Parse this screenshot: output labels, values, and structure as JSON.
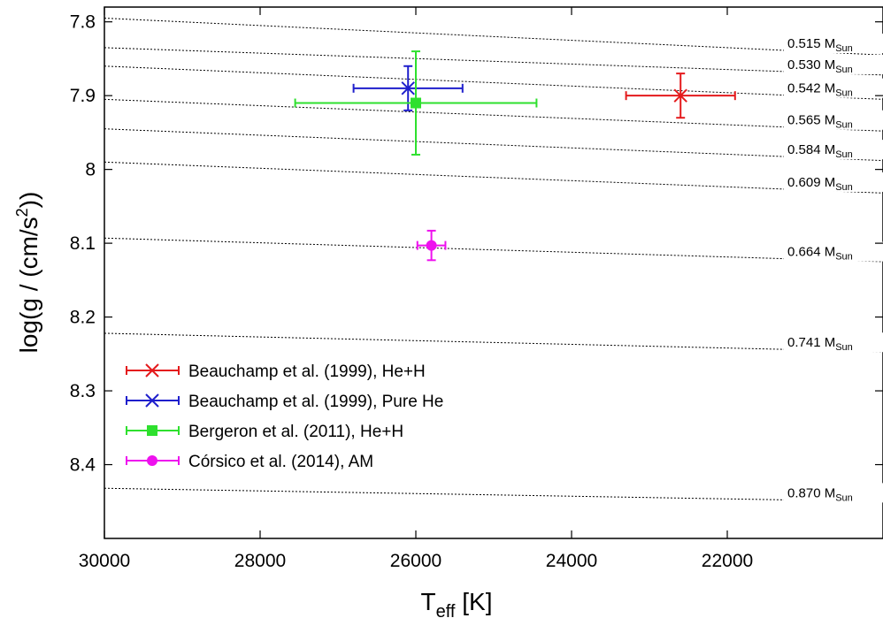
{
  "chart_data": {
    "type": "scatter",
    "xlabel": {
      "main": "T",
      "sub": "eff",
      "unit": " [K]"
    },
    "ylabel": {
      "pre": "log(g / (cm/s",
      "sup": "2",
      "post": "))"
    },
    "xlim": [
      30000,
      20000
    ],
    "ylim": [
      7.78,
      8.5
    ],
    "x_reversed": true,
    "y_reversed": true,
    "xticks": [
      30000,
      28000,
      26000,
      24000,
      22000
    ],
    "yticks": [
      7.8,
      7.9,
      8.0,
      8.1,
      8.2,
      8.3,
      8.4
    ],
    "ytick_labels": [
      "7.8",
      "7.9",
      "8",
      "8.1",
      "8.2",
      "8.3",
      "8.4"
    ],
    "xtick_labels": [
      "30000",
      "28000",
      "26000",
      "24000",
      "22000"
    ],
    "legend_position": "lower-left",
    "mass_tracks": [
      {
        "label": "0.515",
        "unit": "M",
        "sub": "Sun",
        "y_left": 7.795,
        "y_right": 7.845
      },
      {
        "label": "0.530",
        "unit": "M",
        "sub": "Sun",
        "y_left": 7.835,
        "y_right": 7.872
      },
      {
        "label": "0.542",
        "unit": "M",
        "sub": "Sun",
        "y_left": 7.86,
        "y_right": 7.905
      },
      {
        "label": "0.565",
        "unit": "M",
        "sub": "Sun",
        "y_left": 7.905,
        "y_right": 7.948
      },
      {
        "label": "0.584",
        "unit": "M",
        "sub": "Sun",
        "y_left": 7.945,
        "y_right": 7.988
      },
      {
        "label": "0.609",
        "unit": "M",
        "sub": "Sun",
        "y_left": 7.99,
        "y_right": 8.032
      },
      {
        "label": "0.664",
        "unit": "M",
        "sub": "Sun",
        "y_left": 8.093,
        "y_right": 8.125
      },
      {
        "label": "0.741",
        "unit": "M",
        "sub": "Sun",
        "y_left": 8.222,
        "y_right": 8.247
      },
      {
        "label": "0.870",
        "unit": "M",
        "sub": "Sun",
        "y_left": 8.432,
        "y_right": 8.45
      }
    ],
    "series": [
      {
        "name": "Beauchamp et al. (1999), He+H",
        "color": "#e41a1c",
        "marker": "x",
        "x": 22600,
        "y": 7.9,
        "xerr": 700,
        "yerr": 0.03
      },
      {
        "name": "Beauchamp et al. (1999), Pure He",
        "color": "#1f1fcc",
        "marker": "x",
        "x": 26100,
        "y": 7.89,
        "xerr": 700,
        "yerr": 0.03
      },
      {
        "name": "Bergeron et al. (2011), He+H",
        "color": "#2ee02e",
        "marker": "square",
        "x": 26000,
        "y": 7.91,
        "xerr": 1550,
        "yerr": 0.07
      },
      {
        "name": "Córsico et al. (2014), AM",
        "color": "#ee11ee",
        "marker": "circle",
        "x": 25800,
        "y": 8.103,
        "xerr": 180,
        "yerr": 0.02
      }
    ]
  }
}
